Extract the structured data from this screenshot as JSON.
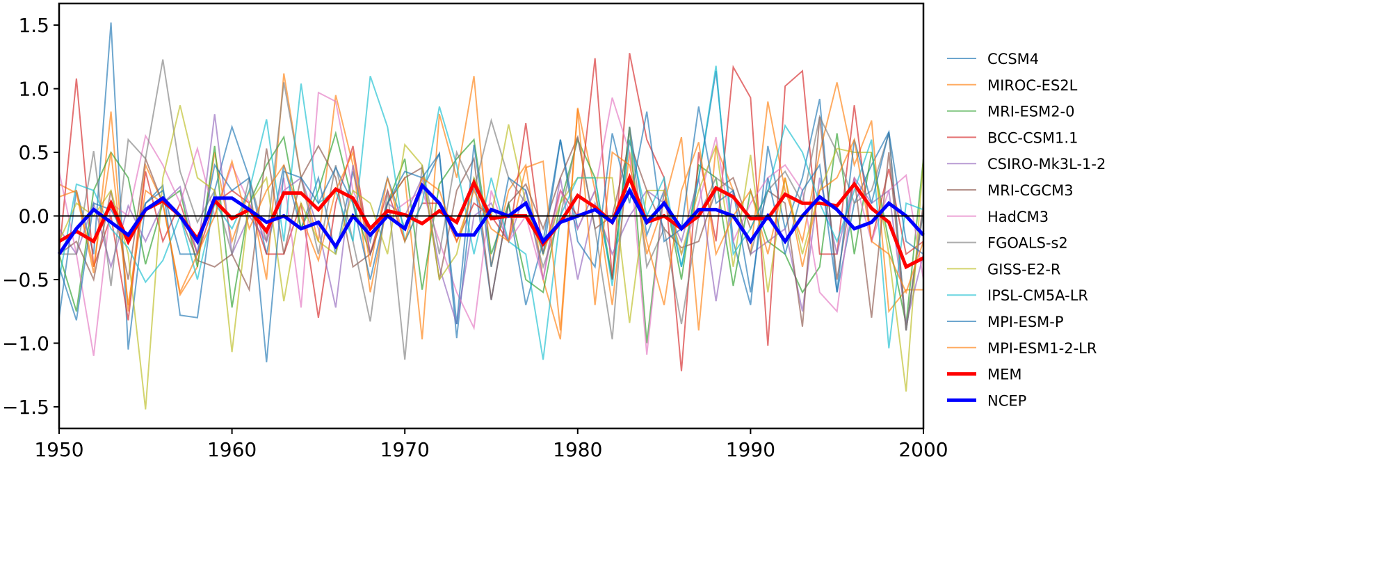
{
  "chart_data": {
    "type": "line",
    "title": "",
    "xlabel": "",
    "ylabel": "",
    "xlim": [
      1950,
      2000
    ],
    "ylim": [
      -1.67,
      1.67
    ],
    "xticks": [
      1950,
      1960,
      1970,
      1980,
      1990,
      2000
    ],
    "xtick_labels": [
      "1950",
      "1960",
      "1970",
      "1980",
      "1990",
      "2000"
    ],
    "yticks": [
      -1.5,
      -1.0,
      -0.5,
      0.0,
      0.5,
      1.0,
      1.5
    ],
    "ytick_labels": [
      "−1.5",
      "−1.0",
      "−0.5",
      "0.0",
      "0.5",
      "1.0",
      "1.5"
    ],
    "grid": false,
    "legend_position": "right-outside",
    "zero_line": true,
    "x_start": 1950,
    "series": [
      {
        "name": "CCSM4",
        "color": "#1f77b4",
        "width": 2,
        "alpha": 0.65,
        "values": [
          -0.8,
          0.2,
          -0.3,
          1.52,
          -1.05,
          0.1,
          0.24,
          -0.78,
          -0.8,
          0.2,
          0.7,
          0.3,
          -0.3,
          0.4,
          -0.1,
          0.3,
          -0.3,
          0.35,
          -0.2,
          0.3,
          -0.1,
          0.2,
          0.49,
          -0.96,
          0.3,
          -0.66,
          0.1,
          -0.7,
          -0.2,
          0.6,
          -0.1,
          0.2,
          -0.5,
          0.7,
          -0.15,
          0.2,
          -0.4,
          0.3,
          1.14,
          -0.2,
          -0.7,
          0.55,
          -0.1,
          0.3,
          0.92,
          -0.6,
          0.1,
          0.4,
          0.66,
          -0.9,
          0.05
        ]
      },
      {
        "name": "MIROC-ES2L",
        "color": "#ff7f0e",
        "width": 2,
        "alpha": 0.65,
        "values": [
          0.25,
          0.18,
          -0.45,
          0.82,
          -0.75,
          0.4,
          0.1,
          -0.62,
          -0.4,
          0.5,
          -0.2,
          0.2,
          -0.5,
          1.12,
          0.3,
          -0.2,
          0.95,
          0.4,
          -0.6,
          0.1,
          0.3,
          -0.97,
          0.8,
          0.3,
          1.1,
          -0.4,
          0.2,
          0.4,
          -0.5,
          -0.97,
          0.85,
          0.2,
          -0.7,
          0.5,
          -0.3,
          0.1,
          0.62,
          -0.9,
          0.55,
          0.2,
          -0.3,
          0.9,
          0.2,
          -0.2,
          0.5,
          1.05,
          0.4,
          0.75,
          -0.75,
          -0.58,
          -0.58
        ]
      },
      {
        "name": "MRI-ESM2-0",
        "color": "#2ca02c",
        "width": 2,
        "alpha": 0.65,
        "values": [
          -0.3,
          -0.75,
          0.2,
          0.5,
          0.3,
          -0.38,
          0.1,
          0.2,
          -0.4,
          0.55,
          -0.72,
          0.1,
          0.4,
          0.62,
          -0.1,
          0.2,
          0.65,
          0.1,
          -0.3,
          0.1,
          0.45,
          -0.58,
          0.25,
          0.45,
          0.6,
          -0.3,
          0.1,
          -0.5,
          -0.6,
          0.1,
          0.6,
          0.3,
          -0.5,
          0.7,
          -1.0,
          0.2,
          -0.5,
          0.4,
          0.3,
          -0.55,
          0.2,
          -0.2,
          -0.3,
          -0.6,
          -0.4,
          0.65,
          -0.3,
          0.5,
          -0.2,
          -0.85,
          0.45
        ]
      },
      {
        "name": "BCC-CSM1.1",
        "color": "#d62728",
        "width": 2,
        "alpha": 0.65,
        "values": [
          -0.3,
          1.08,
          -0.4,
          0.0,
          -0.82,
          0.35,
          -0.2,
          0.1,
          -0.3,
          0.1,
          0.2,
          0.1,
          -0.3,
          -0.3,
          0.1,
          -0.8,
          0.1,
          0.55,
          -0.3,
          0.2,
          -0.2,
          0.1,
          0.1,
          -0.2,
          0.1,
          0.0,
          -0.2,
          0.73,
          -0.3,
          0.2,
          0.0,
          1.24,
          -0.5,
          1.28,
          0.6,
          0.3,
          -1.22,
          0.5,
          -0.2,
          1.17,
          0.93,
          -1.02,
          1.02,
          1.14,
          -0.3,
          -0.3,
          0.87,
          -0.2,
          0.37,
          -0.3,
          -0.2
        ]
      },
      {
        "name": "CSIRO-Mk3L-1-2",
        "color": "#9467bd",
        "width": 2,
        "alpha": 0.65,
        "values": [
          -0.1,
          -0.3,
          0.1,
          -0.4,
          0.08,
          -0.2,
          0.1,
          0.23,
          -0.3,
          0.8,
          -0.3,
          0.0,
          -0.2,
          0.2,
          0.3,
          -0.1,
          -0.72,
          0.4,
          -0.3,
          0.1,
          0.0,
          0.3,
          -0.4,
          -0.85,
          0.0,
          0.1,
          -0.2,
          0.2,
          -0.5,
          0.3,
          -0.5,
          0.1,
          -0.3,
          0.0,
          0.2,
          0.1,
          -0.2,
          0.3,
          -0.67,
          0.2,
          -0.3,
          -0.2,
          -0.1,
          -0.75,
          0.3,
          -0.3,
          0.3,
          0.1,
          0.2,
          -0.85,
          -0.3
        ]
      },
      {
        "name": "MRI-CGCM3",
        "color": "#8c564b",
        "width": 2,
        "alpha": 0.65,
        "values": [
          -0.3,
          -0.2,
          -0.5,
          0.2,
          -0.5,
          0.45,
          0.1,
          0.0,
          -0.35,
          -0.4,
          -0.3,
          -0.58,
          0.53,
          -0.3,
          0.3,
          0.55,
          0.3,
          -0.4,
          -0.3,
          0.1,
          0.3,
          0.38,
          -0.5,
          0.2,
          0.45,
          -0.66,
          0.1,
          0.25,
          -0.1,
          0.3,
          0.62,
          -0.1,
          0.0,
          0.58,
          0.2,
          -0.1,
          -0.25,
          -0.2,
          0.2,
          0.3,
          -0.1,
          0.2,
          0.1,
          -0.87,
          0.78,
          -0.5,
          0.3,
          -0.8,
          0.5,
          -0.9,
          0.1
        ]
      },
      {
        "name": "HadCM3",
        "color": "#e377c2",
        "width": 2,
        "alpha": 0.65,
        "values": [
          0.35,
          -0.3,
          -1.1,
          0.1,
          0.0,
          0.63,
          0.4,
          0.1,
          0.53,
          0.0,
          0.4,
          0.1,
          -0.2,
          0.3,
          -0.72,
          0.97,
          0.9,
          0.2,
          -0.1,
          0.0,
          0.1,
          0.2,
          -0.2,
          -0.6,
          -0.88,
          0.2,
          -0.2,
          0.0,
          -0.5,
          0.2,
          -0.1,
          0.2,
          0.93,
          0.5,
          -1.09,
          0.2,
          -0.3,
          0.1,
          0.62,
          -0.2,
          0.1,
          0.3,
          0.4,
          0.2,
          -0.6,
          -0.75,
          0.3,
          -0.2,
          0.2,
          0.32,
          -0.5
        ]
      },
      {
        "name": "FGOALS-s2",
        "color": "#7f7f7f",
        "width": 2,
        "alpha": 0.65,
        "values": [
          -0.3,
          -0.3,
          0.51,
          -0.55,
          0.6,
          0.45,
          1.23,
          0.35,
          -0.05,
          0.2,
          -0.3,
          0.3,
          -0.2,
          1.05,
          0.3,
          -0.3,
          0.4,
          -0.2,
          -0.83,
          0.2,
          -1.13,
          0.4,
          -0.3,
          0.5,
          0.2,
          0.75,
          0.3,
          0.1,
          -0.4,
          0.0,
          0.62,
          -0.1,
          -0.97,
          0.7,
          -0.4,
          -0.1,
          -0.85,
          0.0,
          0.3,
          0.2,
          -0.3,
          0.2,
          0.35,
          0.1,
          0.78,
          0.5,
          0.1,
          0.2,
          0.65,
          -0.9,
          0.05
        ]
      },
      {
        "name": "GISS-E2-R",
        "color": "#bcbd22",
        "width": 2,
        "alpha": 0.65,
        "values": [
          -0.2,
          0.1,
          0.0,
          0.2,
          -0.3,
          -1.52,
          0.3,
          0.87,
          0.3,
          0.2,
          -1.07,
          0.1,
          0.3,
          -0.67,
          0.1,
          -0.2,
          -0.3,
          0.2,
          0.1,
          -0.3,
          0.56,
          0.4,
          -0.5,
          -0.3,
          0.3,
          0.0,
          0.72,
          0.1,
          -0.3,
          0.1,
          0.3,
          0.3,
          0.3,
          -0.84,
          0.2,
          0.2,
          -0.3,
          0.2,
          0.55,
          -0.4,
          0.48,
          -0.6,
          0.3,
          -0.3,
          0.2,
          0.53,
          0.5,
          0.5,
          -0.3,
          -1.38,
          0.45
        ]
      },
      {
        "name": "IPSL-CM5A-LR",
        "color": "#17becf",
        "width": 2,
        "alpha": 0.65,
        "values": [
          -0.5,
          0.25,
          0.2,
          -0.1,
          -0.25,
          -0.52,
          -0.35,
          0.0,
          -0.5,
          0.1,
          -0.1,
          0.2,
          0.76,
          -0.2,
          1.04,
          0.1,
          0.2,
          -0.2,
          1.1,
          0.7,
          -0.2,
          0.1,
          0.86,
          0.4,
          -0.3,
          0.3,
          -0.2,
          -0.3,
          -1.13,
          0.0,
          0.3,
          0.3,
          -0.55,
          0.6,
          0.0,
          0.3,
          -0.4,
          0.3,
          1.18,
          -0.3,
          -0.1,
          0.2,
          0.71,
          0.5,
          0.1,
          -0.2,
          0.2,
          0.6,
          -1.04,
          0.1,
          0.05
        ]
      },
      {
        "name": "MPI-ESM-P",
        "color": "#1f77b4",
        "width": 2,
        "alpha": 0.65,
        "values": [
          -0.4,
          -0.82,
          0.1,
          0.05,
          -0.2,
          0.1,
          0.2,
          -0.3,
          -0.3,
          0.4,
          0.2,
          0.3,
          -1.15,
          0.35,
          0.3,
          0.1,
          0.38,
          0.1,
          -0.5,
          0.1,
          0.35,
          0.3,
          0.49,
          -0.85,
          0.56,
          -0.4,
          0.3,
          0.2,
          -0.3,
          0.6,
          -0.2,
          -0.4,
          0.65,
          0.1,
          0.82,
          -0.2,
          -0.1,
          0.86,
          0.1,
          0.2,
          -0.6,
          0.3,
          -0.3,
          0.2,
          0.4,
          -0.6,
          0.6,
          0.1,
          0.66,
          -0.2,
          -0.3
        ]
      },
      {
        "name": "MPI-ESM1-2-LR",
        "color": "#ff7f0e",
        "width": 2,
        "alpha": 0.65,
        "values": [
          0.15,
          0.2,
          -0.4,
          0.5,
          -0.7,
          0.2,
          0.1,
          -0.6,
          -0.3,
          0.0,
          0.43,
          -0.1,
          0.2,
          0.4,
          0.0,
          -0.35,
          0.2,
          0.5,
          -0.4,
          0.3,
          -0.2,
          0.3,
          0.2,
          -0.2,
          0.2,
          -0.1,
          -0.2,
          0.38,
          0.43,
          -0.9,
          0.84,
          -0.7,
          0.5,
          0.4,
          -0.2,
          -0.7,
          0.2,
          0.58,
          -0.3,
          0.0,
          0.2,
          -0.3,
          0.3,
          -0.4,
          0.2,
          0.3,
          0.6,
          -0.2,
          -0.3,
          -0.6,
          -0.2
        ]
      },
      {
        "name": "MEM",
        "color": "#ff0000",
        "width": 5,
        "alpha": 1,
        "values": [
          -0.2,
          -0.12,
          -0.2,
          0.1,
          -0.2,
          0.05,
          0.12,
          0.0,
          -0.18,
          0.12,
          -0.02,
          0.05,
          -0.12,
          0.18,
          0.18,
          0.05,
          0.21,
          0.14,
          -0.1,
          0.04,
          0.01,
          -0.06,
          0.04,
          -0.05,
          0.26,
          -0.02,
          0.0,
          0.0,
          -0.22,
          -0.05,
          0.16,
          0.07,
          -0.05,
          0.3,
          -0.05,
          0.0,
          -0.1,
          0.0,
          0.22,
          0.15,
          -0.02,
          -0.02,
          0.17,
          0.1,
          0.1,
          0.08,
          0.25,
          0.06,
          -0.05,
          -0.4,
          -0.33
        ]
      },
      {
        "name": "NCEP",
        "color": "#0000ff",
        "width": 5,
        "alpha": 1,
        "values": [
          -0.3,
          -0.1,
          0.05,
          -0.05,
          -0.15,
          0.05,
          0.14,
          0.0,
          -0.2,
          0.14,
          0.14,
          0.05,
          -0.05,
          0.0,
          -0.1,
          -0.05,
          -0.24,
          0.0,
          -0.15,
          0.0,
          -0.1,
          0.24,
          0.1,
          -0.15,
          -0.15,
          0.05,
          0.0,
          0.1,
          -0.2,
          -0.05,
          0.0,
          0.05,
          -0.05,
          0.2,
          -0.05,
          0.1,
          -0.1,
          0.05,
          0.05,
          0.0,
          -0.2,
          0.0,
          -0.2,
          0.0,
          0.15,
          0.05,
          -0.1,
          -0.05,
          0.1,
          0.0,
          -0.15
        ]
      }
    ]
  }
}
